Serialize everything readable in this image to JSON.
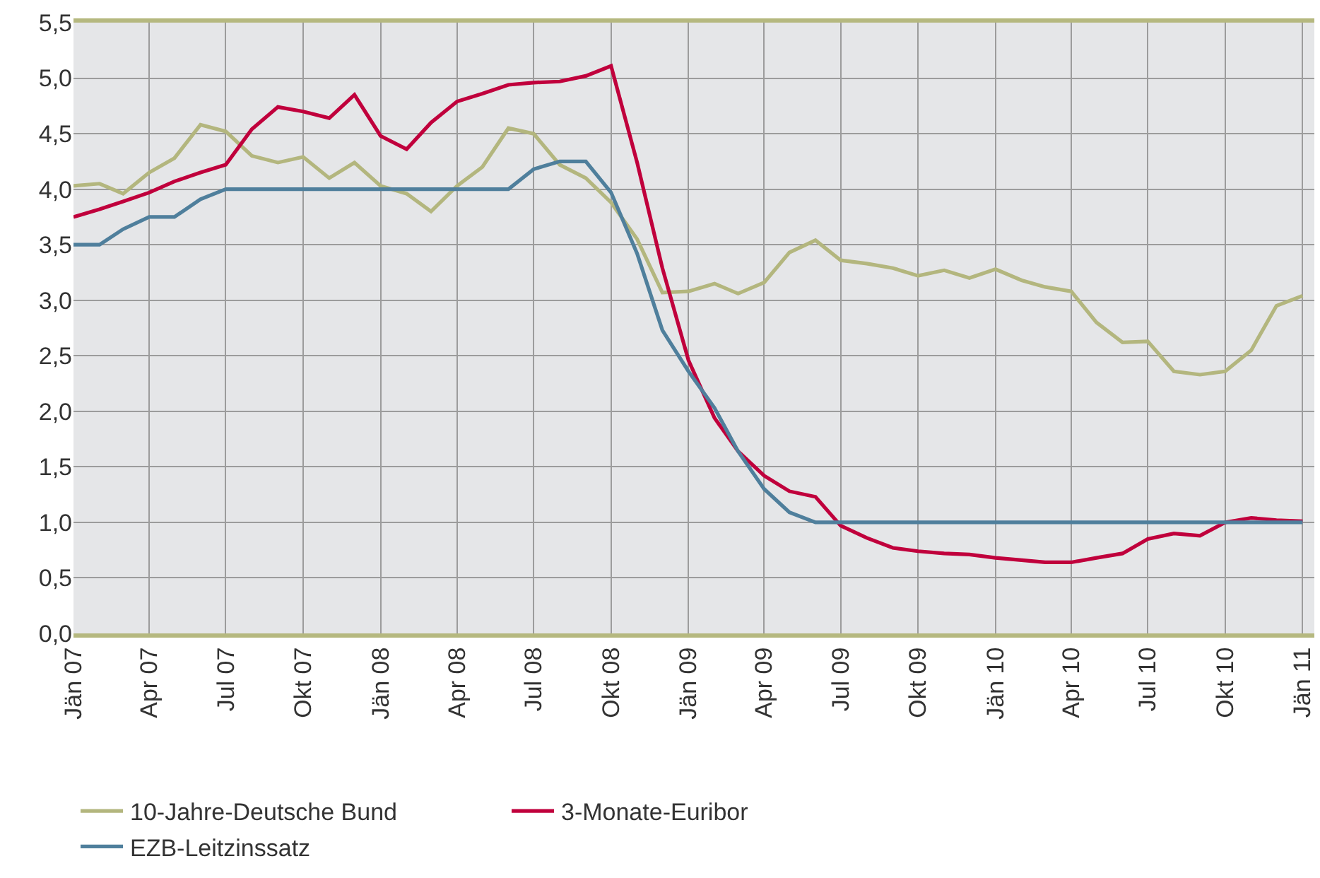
{
  "chart_data": {
    "type": "line",
    "x": [
      "2007-01",
      "2007-02",
      "2007-03",
      "2007-04",
      "2007-05",
      "2007-06",
      "2007-07",
      "2007-08",
      "2007-09",
      "2007-10",
      "2007-11",
      "2007-12",
      "2008-01",
      "2008-02",
      "2008-03",
      "2008-04",
      "2008-05",
      "2008-06",
      "2008-07",
      "2008-08",
      "2008-09",
      "2008-10",
      "2008-11",
      "2008-12",
      "2009-01",
      "2009-02",
      "2009-03",
      "2009-04",
      "2009-05",
      "2009-06",
      "2009-07",
      "2009-08",
      "2009-09",
      "2009-10",
      "2009-11",
      "2009-12",
      "2010-01",
      "2010-02",
      "2010-03",
      "2010-04",
      "2010-05",
      "2010-06",
      "2010-07",
      "2010-08",
      "2010-09",
      "2010-10",
      "2010-11",
      "2010-12",
      "2011-01"
    ],
    "series": [
      {
        "name": "10-Jahre-Deutsche Bund",
        "color": "#b3b67e",
        "values": [
          4.03,
          4.05,
          3.96,
          4.15,
          4.28,
          4.58,
          4.52,
          4.3,
          4.24,
          4.29,
          4.1,
          4.24,
          4.03,
          3.96,
          3.8,
          4.03,
          4.2,
          4.55,
          4.5,
          4.22,
          4.1,
          3.88,
          3.55,
          3.07,
          3.08,
          3.15,
          3.06,
          3.16,
          3.43,
          3.54,
          3.36,
          3.33,
          3.29,
          3.22,
          3.27,
          3.2,
          3.28,
          3.18,
          3.12,
          3.08,
          2.8,
          2.62,
          2.63,
          2.36,
          2.33,
          2.36,
          2.55,
          2.95,
          3.04
        ]
      },
      {
        "name": "3-Monate-Euribor",
        "color": "#c0003c",
        "values": [
          3.75,
          3.82,
          3.89,
          3.97,
          4.07,
          4.15,
          4.22,
          4.54,
          4.74,
          4.7,
          4.64,
          4.85,
          4.48,
          4.36,
          4.6,
          4.79,
          4.86,
          4.94,
          4.96,
          4.97,
          5.02,
          5.11,
          4.24,
          3.29,
          2.46,
          1.94,
          1.64,
          1.42,
          1.28,
          1.23,
          0.97,
          0.86,
          0.77,
          0.74,
          0.72,
          0.71,
          0.68,
          0.66,
          0.64,
          0.64,
          0.68,
          0.72,
          0.85,
          0.9,
          0.88,
          1.0,
          1.04,
          1.02,
          1.01
        ]
      },
      {
        "name": "EZB-Leitzinssatz",
        "color": "#4f7f9c",
        "values": [
          3.5,
          3.5,
          3.64,
          3.75,
          3.75,
          3.91,
          4.0,
          4.0,
          4.0,
          4.0,
          4.0,
          4.0,
          4.0,
          4.0,
          4.0,
          4.0,
          4.0,
          4.0,
          4.18,
          4.25,
          4.25,
          3.97,
          3.42,
          2.73,
          2.36,
          2.03,
          1.64,
          1.3,
          1.09,
          1.0,
          1.0,
          1.0,
          1.0,
          1.0,
          1.0,
          1.0,
          1.0,
          1.0,
          1.0,
          1.0,
          1.0,
          1.0,
          1.0,
          1.0,
          1.0,
          1.0,
          1.0,
          1.0,
          1.0
        ]
      }
    ],
    "xlim": [
      "2007-01",
      "2011-01-15"
    ],
    "xticks": [
      {
        "value": "2007-01",
        "label": "Jän 07"
      },
      {
        "value": "2007-04",
        "label": "Apr 07"
      },
      {
        "value": "2007-07",
        "label": "Jul 07"
      },
      {
        "value": "2007-10",
        "label": "Okt 07"
      },
      {
        "value": "2008-01",
        "label": "Jän 08"
      },
      {
        "value": "2008-04",
        "label": "Apr 08"
      },
      {
        "value": "2008-07",
        "label": "Jul 08"
      },
      {
        "value": "2008-10",
        "label": "Okt 08"
      },
      {
        "value": "2009-01",
        "label": "Jän 09"
      },
      {
        "value": "2009-04",
        "label": "Apr 09"
      },
      {
        "value": "2009-07",
        "label": "Jul 09"
      },
      {
        "value": "2009-10",
        "label": "Okt 09"
      },
      {
        "value": "2010-01",
        "label": "Jän 10"
      },
      {
        "value": "2010-04",
        "label": "Apr 10"
      },
      {
        "value": "2010-07",
        "label": "Jul 10"
      },
      {
        "value": "2010-10",
        "label": "Okt 10"
      },
      {
        "value": "2011-01",
        "label": "Jän 11"
      }
    ],
    "ylim": [
      0,
      5.5
    ],
    "yticks": [
      {
        "value": 0,
        "label": "0,0"
      },
      {
        "value": 0.5,
        "label": "0,5"
      },
      {
        "value": 1,
        "label": "1,0"
      },
      {
        "value": 1.5,
        "label": "1,5"
      },
      {
        "value": 2,
        "label": "2,0"
      },
      {
        "value": 2.5,
        "label": "2,5"
      },
      {
        "value": 3,
        "label": "3,0"
      },
      {
        "value": 3.5,
        "label": "3,5"
      },
      {
        "value": 4,
        "label": "4,0"
      },
      {
        "value": 4.5,
        "label": "4,5"
      },
      {
        "value": 5,
        "label": "5,0"
      },
      {
        "value": 5.5,
        "label": "5,5"
      }
    ],
    "grid": true,
    "legend": "bottom left",
    "marker": "none",
    "line_style": "solid"
  }
}
